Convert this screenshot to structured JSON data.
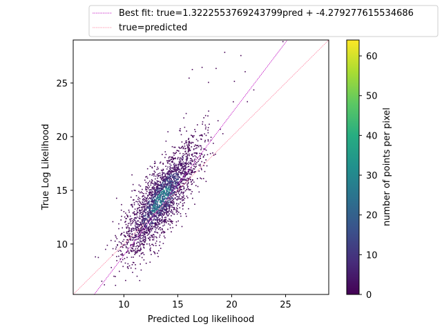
{
  "chart_data": {
    "type": "scatter",
    "title": "",
    "xlabel": "Predicted Log likelihood",
    "ylabel": "True Log Likelihood",
    "xlim": [
      5.3,
      29.0
    ],
    "ylim": [
      5.3,
      29.0
    ],
    "xticks": [
      10,
      15,
      20,
      25
    ],
    "yticks": [
      10,
      15,
      20,
      25
    ],
    "grid": false,
    "legend_position": "upper-right, outside axes",
    "series": [
      {
        "name": "Best fit: true=1.3222553769243799pred + -4.279277615534686",
        "kind": "line",
        "slope": 1.3222553769243799,
        "intercept": -4.279277615534686,
        "color": "#bf00bf"
      },
      {
        "name": "true=predicted",
        "kind": "line",
        "slope": 1,
        "intercept": 0,
        "color": "#ff7f9f"
      }
    ],
    "density": {
      "description_points": "2D histogram of predicted vs true log likelihood",
      "cluster_center": [
        13.4,
        14.2
      ],
      "cluster_extent_x": [
        7.5,
        24.5
      ],
      "cluster_extent_y": [
        5.5,
        28.5
      ],
      "outliers": [
        [
          19.3,
          27.9
        ],
        [
          20.8,
          27.6
        ],
        [
          24.7,
          28.9
        ],
        [
          17.2,
          26.5
        ],
        [
          18.5,
          26.4
        ],
        [
          21.2,
          26.1
        ],
        [
          20.2,
          25.2
        ],
        [
          16.0,
          25.5
        ],
        [
          22.0,
          24.4
        ],
        [
          21.4,
          23.3
        ],
        [
          17.8,
          25.1
        ],
        [
          16.3,
          26.3
        ]
      ]
    },
    "colorbar": {
      "label": "number of points per pixel",
      "colormap": "viridis",
      "range": [
        0,
        64
      ],
      "ticks": [
        0,
        10,
        20,
        30,
        40,
        50,
        60
      ]
    }
  }
}
